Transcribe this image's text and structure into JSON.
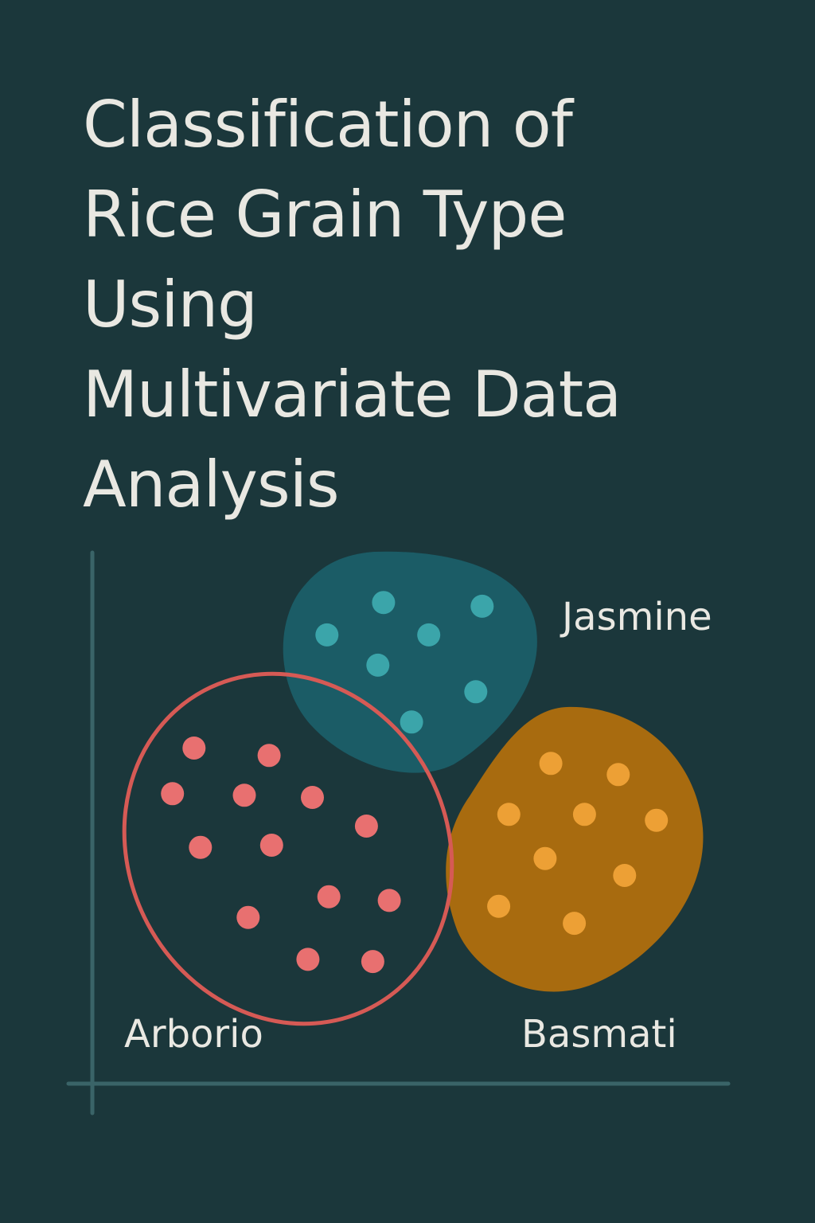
{
  "chart_data": {
    "type": "scatter",
    "title_lines": [
      "Classification of",
      "Rice Grain Type",
      "Using",
      "Multivariate Data",
      "Analysis"
    ],
    "xlabel": "",
    "ylabel": "",
    "grid": false,
    "x_range": [
      0,
      100
    ],
    "y_range": [
      0,
      100
    ],
    "series": [
      {
        "name": "Jasmine",
        "style": "filled-region",
        "region_color": "#1b5c66",
        "point_color": "#3ba5aa",
        "points": [
          {
            "x": 45.8,
            "y": 90.6
          },
          {
            "x": 61.3,
            "y": 89.9
          },
          {
            "x": 36.9,
            "y": 84.5
          },
          {
            "x": 52.9,
            "y": 84.5
          },
          {
            "x": 44.9,
            "y": 78.8
          },
          {
            "x": 60.3,
            "y": 73.8
          },
          {
            "x": 50.2,
            "y": 68.1
          }
        ]
      },
      {
        "name": "Arborio",
        "style": "outlined-region",
        "region_color": "#d65a55",
        "point_color": "#e87070",
        "points": [
          {
            "x": 16.0,
            "y": 63.2
          },
          {
            "x": 27.8,
            "y": 61.8
          },
          {
            "x": 12.6,
            "y": 54.6
          },
          {
            "x": 23.9,
            "y": 54.3
          },
          {
            "x": 34.6,
            "y": 53.9
          },
          {
            "x": 43.1,
            "y": 48.5
          },
          {
            "x": 17.0,
            "y": 44.5
          },
          {
            "x": 28.2,
            "y": 44.9
          },
          {
            "x": 37.2,
            "y": 35.2
          },
          {
            "x": 46.7,
            "y": 34.5
          },
          {
            "x": 24.5,
            "y": 31.3
          },
          {
            "x": 33.9,
            "y": 23.4
          },
          {
            "x": 44.1,
            "y": 23.0
          }
        ]
      },
      {
        "name": "Basmati",
        "style": "filled-region",
        "region_color": "#a86b0f",
        "point_color": "#eda035",
        "points": [
          {
            "x": 72.1,
            "y": 60.3
          },
          {
            "x": 82.7,
            "y": 58.2
          },
          {
            "x": 65.5,
            "y": 50.7
          },
          {
            "x": 77.4,
            "y": 50.7
          },
          {
            "x": 88.7,
            "y": 49.6
          },
          {
            "x": 71.2,
            "y": 42.4
          },
          {
            "x": 83.7,
            "y": 39.2
          },
          {
            "x": 63.9,
            "y": 33.4
          },
          {
            "x": 75.8,
            "y": 30.2
          }
        ]
      }
    ],
    "colors": {
      "background": "#1b373b",
      "axis": "#3a6468",
      "text": "#e9e8e2"
    }
  }
}
